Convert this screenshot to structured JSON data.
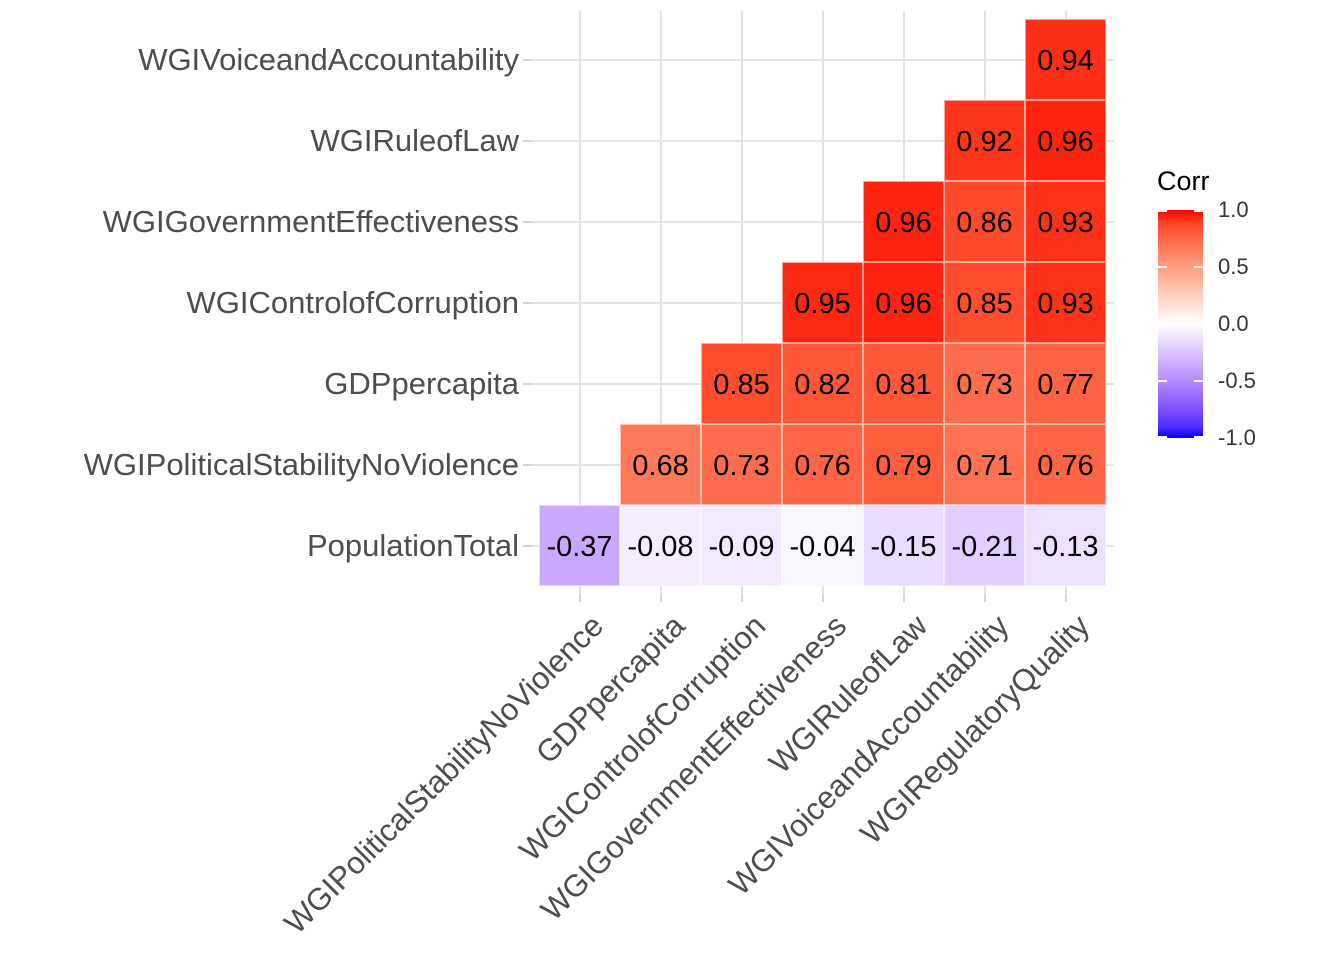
{
  "chart_data": {
    "type": "heatmap",
    "subtype": "correlation-matrix-lower-triangle",
    "title": "",
    "legend_title": "Corr",
    "legend_position": "right",
    "x_categories": [
      "WGIPoliticalStabilityNoViolence",
      "GDPpercapita",
      "WGIControlofCorruption",
      "WGIGovernmentEffectiveness",
      "WGIRuleofLaw",
      "WGIVoiceandAccountability",
      "WGIRegulatoryQuality"
    ],
    "y_categories_top_to_bottom": [
      "WGIVoiceandAccountability",
      "WGIRuleofLaw",
      "WGIGovernmentEffectiveness",
      "WGIControlofCorruption",
      "GDPpercapita",
      "WGIPoliticalStabilityNoViolence",
      "PopulationTotal"
    ],
    "color_scale": {
      "low": "#0000FF",
      "mid": "#FFFFFF",
      "high": "#FF0000",
      "domain": [
        -1,
        1
      ],
      "interpolation": "lab"
    },
    "legend_ticks": [
      {
        "value": 1.0,
        "label": "1.0"
      },
      {
        "value": 0.5,
        "label": "0.5"
      },
      {
        "value": 0.0,
        "label": "0.0"
      },
      {
        "value": -0.5,
        "label": "-0.5"
      },
      {
        "value": -1.0,
        "label": "-1.0"
      }
    ],
    "grid": true,
    "cells": [
      {
        "row": "WGIVoiceandAccountability",
        "col": "WGIRegulatoryQuality",
        "value": 0.94,
        "label": "0.94"
      },
      {
        "row": "WGIRuleofLaw",
        "col": "WGIVoiceandAccountability",
        "value": 0.92,
        "label": "0.92"
      },
      {
        "row": "WGIRuleofLaw",
        "col": "WGIRegulatoryQuality",
        "value": 0.96,
        "label": "0.96"
      },
      {
        "row": "WGIGovernmentEffectiveness",
        "col": "WGIRuleofLaw",
        "value": 0.96,
        "label": "0.96"
      },
      {
        "row": "WGIGovernmentEffectiveness",
        "col": "WGIVoiceandAccountability",
        "value": 0.86,
        "label": "0.86"
      },
      {
        "row": "WGIGovernmentEffectiveness",
        "col": "WGIRegulatoryQuality",
        "value": 0.93,
        "label": "0.93"
      },
      {
        "row": "WGIControlofCorruption",
        "col": "WGIGovernmentEffectiveness",
        "value": 0.95,
        "label": "0.95"
      },
      {
        "row": "WGIControlofCorruption",
        "col": "WGIRuleofLaw",
        "value": 0.96,
        "label": "0.96"
      },
      {
        "row": "WGIControlofCorruption",
        "col": "WGIVoiceandAccountability",
        "value": 0.85,
        "label": "0.85"
      },
      {
        "row": "WGIControlofCorruption",
        "col": "WGIRegulatoryQuality",
        "value": 0.93,
        "label": "0.93"
      },
      {
        "row": "GDPpercapita",
        "col": "WGIControlofCorruption",
        "value": 0.85,
        "label": "0.85"
      },
      {
        "row": "GDPpercapita",
        "col": "WGIGovernmentEffectiveness",
        "value": 0.82,
        "label": "0.82"
      },
      {
        "row": "GDPpercapita",
        "col": "WGIRuleofLaw",
        "value": 0.81,
        "label": "0.81"
      },
      {
        "row": "GDPpercapita",
        "col": "WGIVoiceandAccountability",
        "value": 0.73,
        "label": "0.73"
      },
      {
        "row": "GDPpercapita",
        "col": "WGIRegulatoryQuality",
        "value": 0.77,
        "label": "0.77"
      },
      {
        "row": "WGIPoliticalStabilityNoViolence",
        "col": "GDPpercapita",
        "value": 0.68,
        "label": "0.68"
      },
      {
        "row": "WGIPoliticalStabilityNoViolence",
        "col": "WGIControlofCorruption",
        "value": 0.73,
        "label": "0.73"
      },
      {
        "row": "WGIPoliticalStabilityNoViolence",
        "col": "WGIGovernmentEffectiveness",
        "value": 0.76,
        "label": "0.76"
      },
      {
        "row": "WGIPoliticalStabilityNoViolence",
        "col": "WGIRuleofLaw",
        "value": 0.79,
        "label": "0.79"
      },
      {
        "row": "WGIPoliticalStabilityNoViolence",
        "col": "WGIVoiceandAccountability",
        "value": 0.71,
        "label": "0.71"
      },
      {
        "row": "WGIPoliticalStabilityNoViolence",
        "col": "WGIRegulatoryQuality",
        "value": 0.76,
        "label": "0.76"
      },
      {
        "row": "PopulationTotal",
        "col": "WGIPoliticalStabilityNoViolence",
        "value": -0.37,
        "label": "-0.37"
      },
      {
        "row": "PopulationTotal",
        "col": "GDPpercapita",
        "value": -0.08,
        "label": "-0.08"
      },
      {
        "row": "PopulationTotal",
        "col": "WGIControlofCorruption",
        "value": -0.09,
        "label": "-0.09"
      },
      {
        "row": "PopulationTotal",
        "col": "WGIGovernmentEffectiveness",
        "value": -0.04,
        "label": "-0.04"
      },
      {
        "row": "PopulationTotal",
        "col": "WGIRuleofLaw",
        "value": -0.15,
        "label": "-0.15"
      },
      {
        "row": "PopulationTotal",
        "col": "WGIVoiceandAccountability",
        "value": -0.21,
        "label": "-0.21"
      },
      {
        "row": "PopulationTotal",
        "col": "WGIRegulatoryQuality",
        "value": -0.13,
        "label": "-0.13"
      }
    ]
  }
}
